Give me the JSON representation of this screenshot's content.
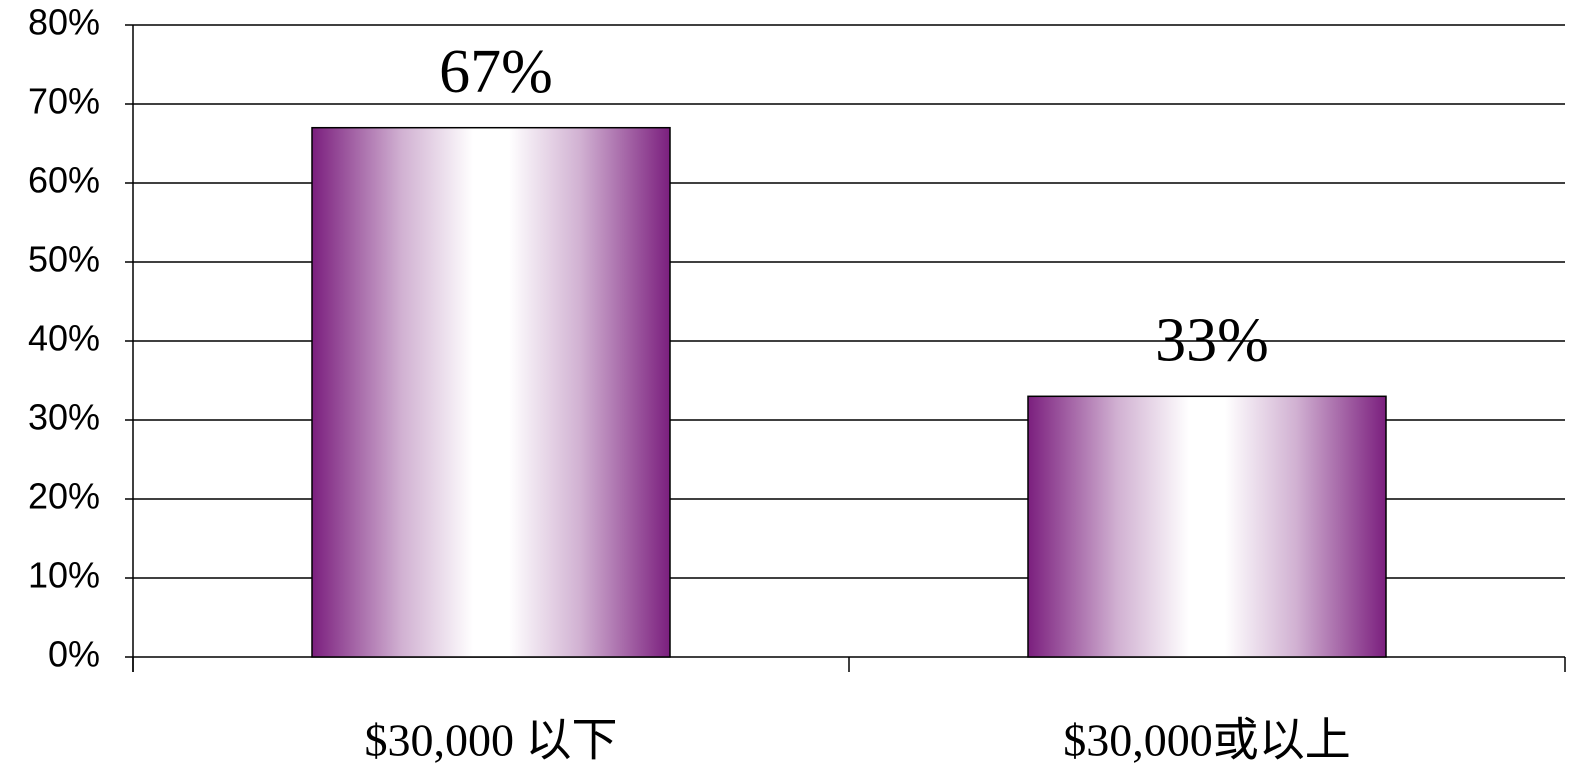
{
  "chart_data": {
    "type": "bar",
    "categories": [
      "$30,000 以下",
      "$30,000或以上"
    ],
    "values": [
      67,
      33
    ],
    "value_labels": [
      "67%",
      "33%"
    ],
    "color": "#7b1f7e",
    "ylim": [
      0,
      80
    ],
    "yticks": [
      {
        "value": 0,
        "label": "0%"
      },
      {
        "value": 10,
        "label": "10%"
      },
      {
        "value": 20,
        "label": "20%"
      },
      {
        "value": 30,
        "label": "30%"
      },
      {
        "value": 40,
        "label": "40%"
      },
      {
        "value": 50,
        "label": "50%"
      },
      {
        "value": 60,
        "label": "60%"
      },
      {
        "value": 70,
        "label": "70%"
      },
      {
        "value": 80,
        "label": "80%"
      }
    ],
    "grid": true
  }
}
